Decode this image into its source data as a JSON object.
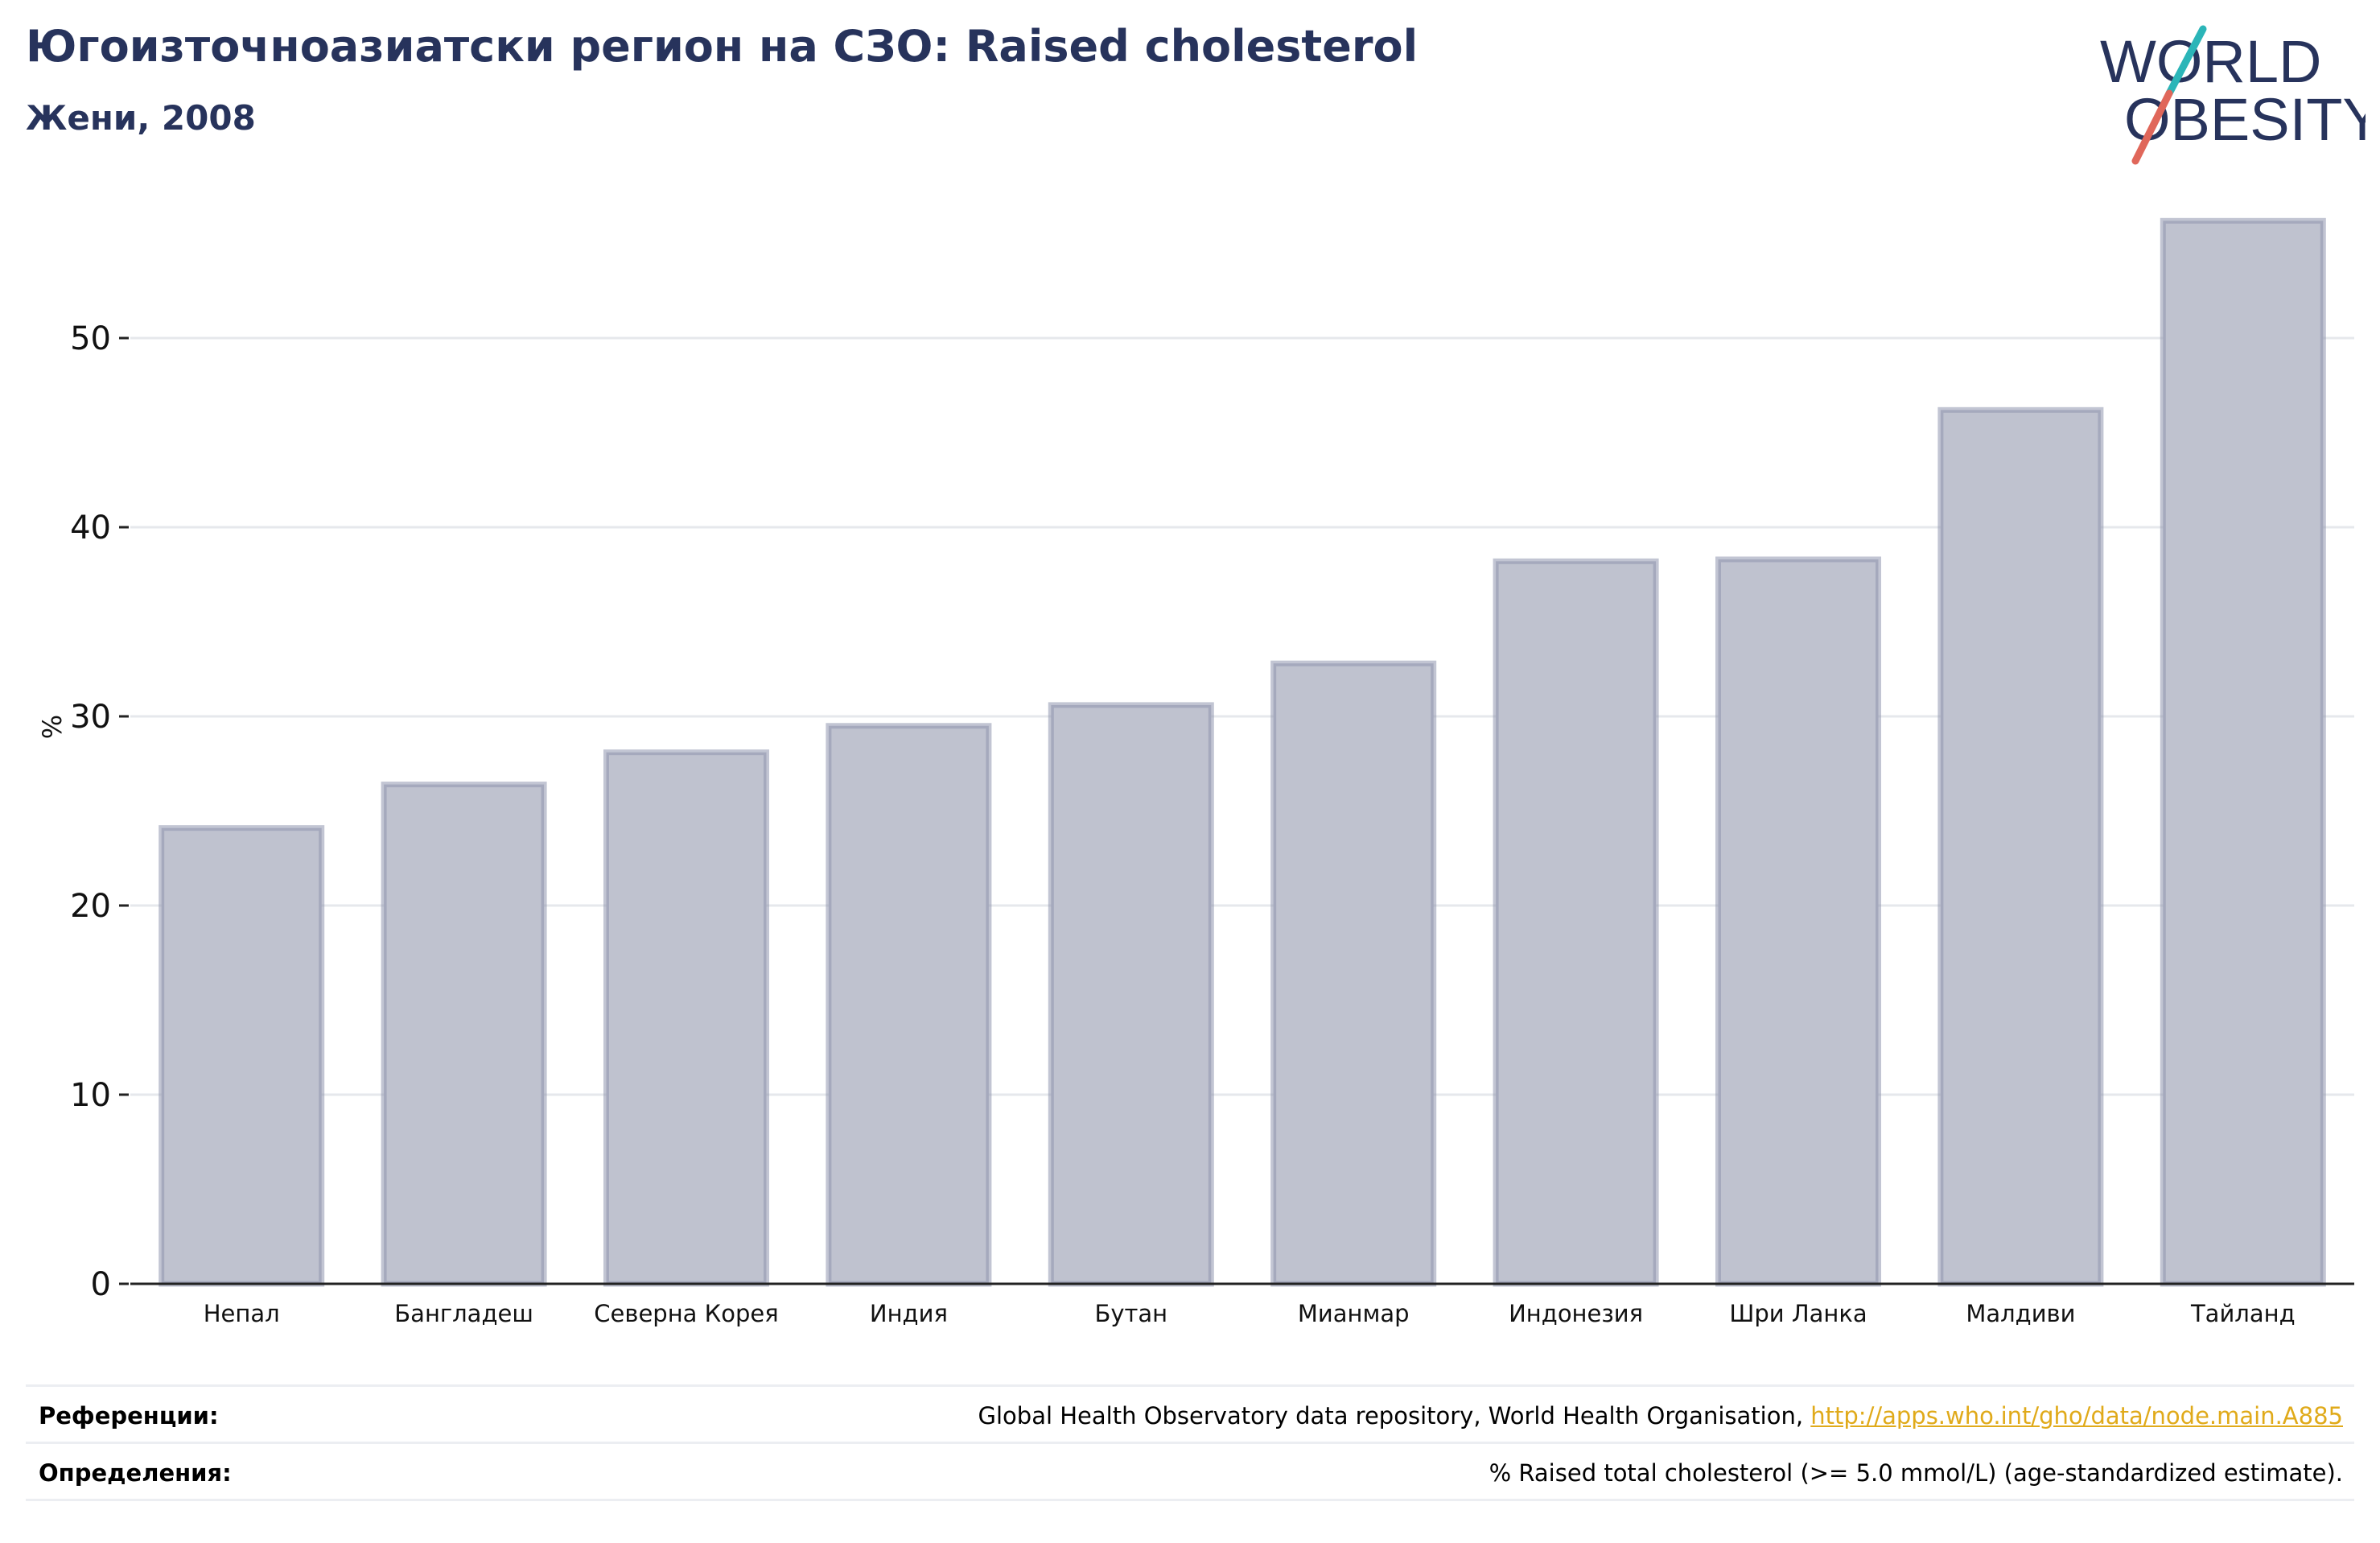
{
  "header": {
    "title": "Югоизточноазиатски регион на СЗО: Raised cholesterol",
    "subtitle": "Жени, 2008"
  },
  "logo": {
    "line1": "WORLD",
    "line2": "OBESITY",
    "colors": {
      "text": "#27335c",
      "slash_top": "#2bb5b8",
      "slash_bottom": "#e0675a"
    }
  },
  "chart_data": {
    "type": "bar",
    "categories": [
      "Непал",
      "Бангладеш",
      "Северна Корея",
      "Индия",
      "Бутан",
      "Мианмар",
      "Индонезия",
      "Шри Ланка",
      "Малдиви",
      "Тайланд"
    ],
    "values": [
      24.1,
      26.4,
      28.1,
      29.5,
      30.6,
      32.8,
      38.2,
      38.3,
      46.2,
      56.2
    ],
    "ylabel": "%",
    "ylim": [
      0,
      58
    ],
    "yticks": [
      0,
      10,
      20,
      30,
      40,
      50
    ],
    "grid": true,
    "colors": {
      "bar_fill": "#bfc2cf",
      "bar_stroke": "#8f95ae",
      "grid": "#e6e8ec",
      "axis": "#222222"
    }
  },
  "footer": {
    "references_label": "Референции:",
    "references_text": "Global Health Observatory data repository, World Health Organisation, ",
    "references_link": "http://apps.who.int/gho/data/node.main.A885",
    "definitions_label": "Определения:",
    "definitions_text": "% Raised total cholesterol (>= 5.0 mmol/L) (age-standardized estimate)."
  }
}
